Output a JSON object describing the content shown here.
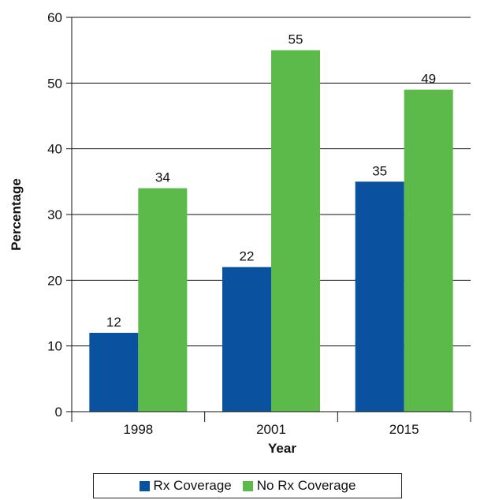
{
  "chart_data": {
    "type": "bar",
    "categories": [
      "1998",
      "2001",
      "2015"
    ],
    "series": [
      {
        "name": "Rx Coverage",
        "values": [
          12,
          22,
          35
        ],
        "color": "#0a52a0"
      },
      {
        "name": "No Rx Coverage",
        "values": [
          34,
          55,
          49
        ],
        "color": "#5cba4a"
      }
    ],
    "xlabel": "Year",
    "ylabel": "Percentage",
    "ylim": [
      0,
      60
    ],
    "yticks": [
      0,
      10,
      20,
      30,
      40,
      50,
      60
    ],
    "grid": true,
    "legend_position": "bottom"
  }
}
